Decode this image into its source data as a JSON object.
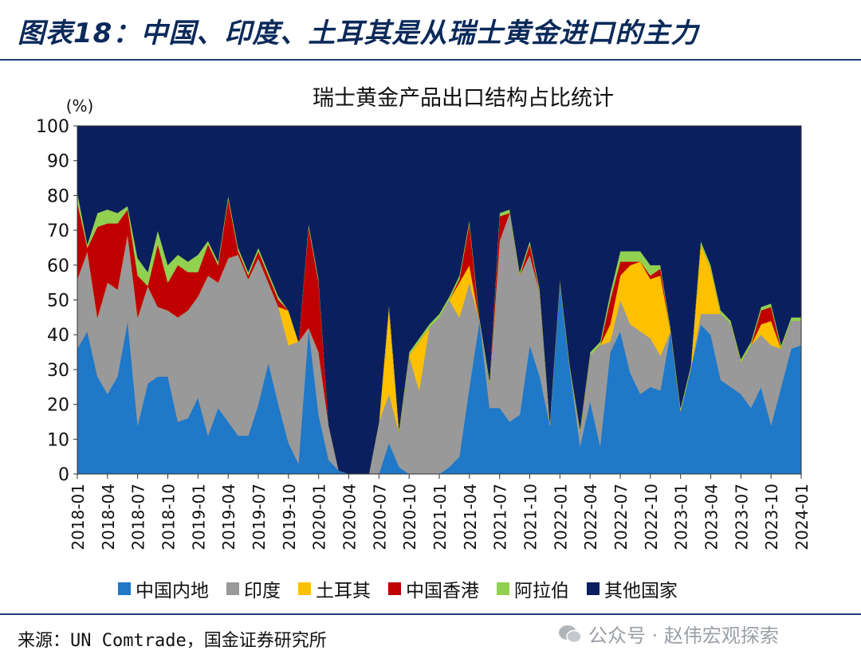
{
  "figure_title": "图表18：中国、印度、土耳其是从瑞士黄金进口的主力",
  "source": "来源：UN Comtrade，国金证券研究所",
  "watermark": "公众号 · 赵伟宏观探索",
  "chart_data": {
    "type": "area",
    "stacked": true,
    "title": "瑞士黄金产品出口结构占比统计",
    "ylabel": "(%)",
    "ylim": [
      0,
      100
    ],
    "yticks": [
      0,
      10,
      20,
      30,
      40,
      50,
      60,
      70,
      80,
      90,
      100
    ],
    "grid": false,
    "legend_position": "bottom",
    "x": [
      "2018-01",
      "2018-02",
      "2018-03",
      "2018-04",
      "2018-05",
      "2018-06",
      "2018-07",
      "2018-08",
      "2018-09",
      "2018-10",
      "2018-11",
      "2018-12",
      "2019-01",
      "2019-02",
      "2019-03",
      "2019-04",
      "2019-05",
      "2019-06",
      "2019-07",
      "2019-08",
      "2019-09",
      "2019-10",
      "2019-11",
      "2019-12",
      "2020-01",
      "2020-02",
      "2020-03",
      "2020-04",
      "2020-05",
      "2020-06",
      "2020-07",
      "2020-08",
      "2020-09",
      "2020-10",
      "2020-11",
      "2020-12",
      "2021-01",
      "2021-02",
      "2021-03",
      "2021-04",
      "2021-05",
      "2021-06",
      "2021-07",
      "2021-08",
      "2021-09",
      "2021-10",
      "2021-11",
      "2021-12",
      "2022-01",
      "2022-02",
      "2022-03",
      "2022-04",
      "2022-05",
      "2022-06",
      "2022-07",
      "2022-08",
      "2022-09",
      "2022-10",
      "2022-11",
      "2022-12",
      "2023-01",
      "2023-02",
      "2023-03",
      "2023-04",
      "2023-05",
      "2023-06",
      "2023-07",
      "2023-08",
      "2023-09",
      "2023-10",
      "2023-11",
      "2023-12",
      "2024-01"
    ],
    "xtick_labels": [
      "2018-01",
      "2018-04",
      "2018-07",
      "2018-10",
      "2019-01",
      "2019-04",
      "2019-07",
      "2019-10",
      "2020-01",
      "2020-04",
      "2020-07",
      "2020-10",
      "2021-01",
      "2021-04",
      "2021-07",
      "2021-10",
      "2022-01",
      "2022-04",
      "2022-07",
      "2022-10",
      "2023-01",
      "2023-04",
      "2023-07",
      "2023-10",
      "2024-01"
    ],
    "series": [
      {
        "name": "中国内地",
        "color": "#1f78c8",
        "values": [
          36,
          41,
          28,
          23,
          28,
          44,
          14,
          26,
          28,
          28,
          15,
          16,
          22,
          11,
          19,
          15,
          11,
          11,
          20,
          32,
          20,
          9,
          3,
          42,
          17,
          4,
          1,
          0,
          0,
          0,
          0,
          9,
          2,
          0,
          0,
          0,
          0,
          2,
          5,
          25,
          44,
          19,
          19,
          15,
          17,
          37,
          28,
          14,
          55,
          30,
          8,
          21,
          8,
          35,
          41,
          29,
          23,
          25,
          24,
          41,
          18,
          30,
          43,
          40,
          27,
          25,
          23,
          19,
          25,
          14,
          25,
          36,
          37
        ]
      },
      {
        "name": "印度",
        "color": "#999999",
        "values": [
          20,
          23,
          17,
          32,
          25,
          25,
          31,
          28,
          20,
          19,
          30,
          31,
          29,
          46,
          36,
          47,
          52,
          45,
          42,
          23,
          28,
          28,
          35,
          0,
          18,
          10,
          0,
          0,
          0,
          0,
          15,
          14,
          10,
          34,
          24,
          42,
          45,
          48,
          40,
          30,
          0,
          7,
          48,
          60,
          40,
          26,
          24,
          0,
          0,
          0,
          4,
          13,
          29,
          3,
          9,
          14,
          18,
          14,
          10,
          0,
          0,
          0,
          3,
          6,
          19,
          18,
          9,
          18,
          15,
          23,
          11,
          8,
          7
        ]
      },
      {
        "name": "土耳其",
        "color": "#ffc000",
        "values": [
          0,
          0,
          0,
          0,
          0,
          0,
          0,
          0,
          0,
          0,
          0,
          0,
          0,
          0,
          0,
          0,
          0,
          0,
          0,
          0,
          0,
          10,
          0,
          0,
          0,
          0,
          0,
          0,
          0,
          0,
          0,
          25,
          0,
          0,
          14,
          0,
          0,
          0,
          10,
          5,
          0,
          0,
          0,
          0,
          0,
          0,
          0,
          0,
          0,
          0,
          0,
          0,
          0,
          5,
          7,
          17,
          20,
          17,
          23,
          0,
          0,
          0,
          20,
          13,
          0,
          0,
          0,
          0,
          3,
          7,
          0,
          0,
          0
        ]
      },
      {
        "name": "中国香港",
        "color": "#c00000",
        "values": [
          22,
          1,
          26,
          17,
          19,
          7,
          12,
          0,
          18,
          8,
          15,
          11,
          7,
          9,
          5,
          17,
          1,
          1,
          2,
          2,
          2,
          0,
          0,
          29,
          20,
          0,
          0,
          0,
          0,
          0,
          0,
          0,
          0,
          0,
          0,
          0,
          0,
          0,
          1,
          12,
          0,
          0,
          7,
          0,
          0,
          3,
          0,
          0,
          0,
          0,
          0,
          0,
          0,
          7,
          4,
          1,
          0,
          1,
          2,
          0,
          0,
          0,
          0,
          0,
          0,
          0,
          0,
          0,
          4,
          4,
          0,
          0,
          0
        ]
      },
      {
        "name": "阿拉伯",
        "color": "#92d050",
        "values": [
          3,
          1,
          4,
          4,
          3,
          1,
          5,
          4,
          4,
          5,
          3,
          3,
          5,
          1,
          1,
          1,
          1,
          1,
          1,
          1,
          1,
          0,
          0,
          1,
          1,
          0,
          0,
          0,
          0,
          0,
          0,
          1,
          1,
          1,
          1,
          1,
          1,
          1,
          1,
          1,
          1,
          1,
          1,
          1,
          1,
          1,
          1,
          1,
          1,
          1,
          1,
          1,
          1,
          2,
          3,
          3,
          3,
          3,
          1,
          1,
          1,
          1,
          1,
          1,
          1,
          1,
          1,
          1,
          1,
          1,
          1,
          1,
          1
        ]
      },
      {
        "name": "其他国家",
        "color": "#0b1f5e",
        "values": [
          19,
          34,
          25,
          24,
          25,
          23,
          38,
          42,
          30,
          40,
          37,
          39,
          37,
          33,
          39,
          20,
          35,
          42,
          35,
          42,
          49,
          53,
          62,
          28,
          44,
          86,
          99,
          100,
          100,
          100,
          85,
          51,
          87,
          65,
          61,
          57,
          54,
          49,
          43,
          27,
          55,
          73,
          25,
          24,
          42,
          33,
          47,
          85,
          44,
          69,
          87,
          65,
          62,
          48,
          36,
          36,
          36,
          40,
          40,
          58,
          81,
          69,
          33,
          40,
          53,
          56,
          67,
          62,
          52,
          51,
          63,
          55,
          55
        ]
      }
    ]
  }
}
